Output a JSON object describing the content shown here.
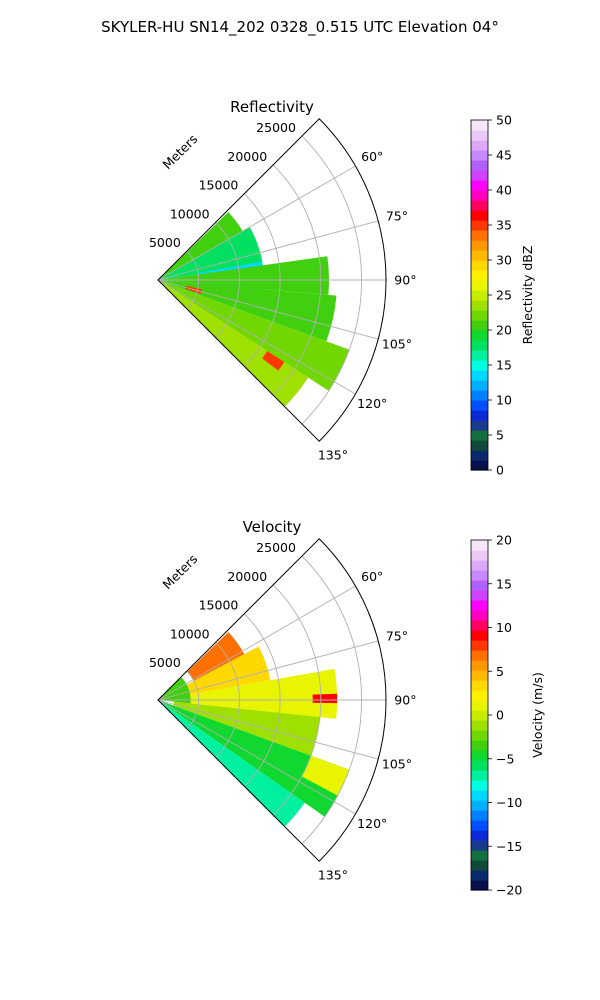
{
  "figure": {
    "suptitle": "SKYLER-HU  SN14_202  0328_0.515 UTC Elevation 04°"
  },
  "chart_data": [
    {
      "type": "heatmap",
      "projection": "polar-sector",
      "title": "Reflectivity",
      "range_label": "Meters",
      "azimuth_range_deg": [
        45,
        135
      ],
      "azimuth_ticks": [
        "60°",
        "75°",
        "90°",
        "105°",
        "120°",
        "135°"
      ],
      "azimuth_tick_values": [
        60,
        75,
        90,
        105,
        120,
        135
      ],
      "range_max": 28000,
      "range_ticks": [
        "5000",
        "10000",
        "15000",
        "20000",
        "25000"
      ],
      "range_tick_values": [
        5000,
        10000,
        15000,
        20000,
        25000
      ],
      "grid": true,
      "colorbar": {
        "label": "Reflectivity dBZ",
        "min": 0,
        "max": 50,
        "ticks": [
          "0",
          "5",
          "10",
          "15",
          "20",
          "25",
          "30",
          "35",
          "40",
          "45",
          "50"
        ],
        "tick_values": [
          0,
          5,
          10,
          15,
          20,
          25,
          30,
          35,
          40,
          45,
          50
        ],
        "colors": [
          "#06104a",
          "#0a2a6e",
          "#0f4a3a",
          "#14703e",
          "#1a3a8c",
          "#0a2ad6",
          "#0050ff",
          "#0080ff",
          "#00b0ff",
          "#00d8ff",
          "#00ffe0",
          "#00f0a0",
          "#00e060",
          "#10d830",
          "#40d010",
          "#70d800",
          "#a0e000",
          "#c8ec00",
          "#e8f400",
          "#fff000",
          "#ffd800",
          "#ffb800",
          "#ff9800",
          "#ff7000",
          "#ff3800",
          "#ff0000",
          "#ff0060",
          "#ff00c0",
          "#ff00ff",
          "#d040ff",
          "#b060ff",
          "#c888ff",
          "#dca8f8",
          "#ecc8f4",
          "#f6e4f8"
        ]
      },
      "radar_cells": [
        {
          "az_start": 46,
          "az_end": 60,
          "r_start": 0,
          "r_end": 12000,
          "value": 20
        },
        {
          "az_start": 60,
          "az_end": 82,
          "r_start": 0,
          "r_end": 13000,
          "value": 18
        },
        {
          "az_start": 80,
          "az_end": 96,
          "r_start": 5000,
          "r_end": 13000,
          "value": 13
        },
        {
          "az_start": 82,
          "az_end": 95,
          "r_start": 0,
          "r_end": 21000,
          "value": 20
        },
        {
          "az_start": 95,
          "az_end": 110,
          "r_start": 0,
          "r_end": 22000,
          "value": 21
        },
        {
          "az_start": 110,
          "az_end": 123,
          "r_start": 0,
          "r_end": 25000,
          "value": 22
        },
        {
          "az_start": 123,
          "az_end": 135,
          "r_start": 0,
          "r_end": 22000,
          "value": 23
        },
        {
          "az_start": 102,
          "az_end": 108,
          "r_start": 3500,
          "r_end": 5500,
          "value": 35
        },
        {
          "az_start": 123,
          "az_end": 127,
          "r_start": 16000,
          "r_end": 18500,
          "value": 35
        }
      ]
    },
    {
      "type": "heatmap",
      "projection": "polar-sector",
      "title": "Velocity",
      "range_label": "Meters",
      "azimuth_range_deg": [
        45,
        135
      ],
      "azimuth_ticks": [
        "60°",
        "75°",
        "90°",
        "105°",
        "120°",
        "135°"
      ],
      "azimuth_tick_values": [
        60,
        75,
        90,
        105,
        120,
        135
      ],
      "range_max": 28000,
      "range_ticks": [
        "5000",
        "10000",
        "15000",
        "20000",
        "25000"
      ],
      "range_tick_values": [
        5000,
        10000,
        15000,
        20000,
        25000
      ],
      "grid": true,
      "colorbar": {
        "label": "Velocity (m/s)",
        "min": -20,
        "max": 20,
        "ticks": [
          "−20",
          "−15",
          "−10",
          "−5",
          "0",
          "5",
          "10",
          "15",
          "20"
        ],
        "tick_values": [
          -20,
          -15,
          -10,
          -5,
          0,
          5,
          10,
          15,
          20
        ],
        "colors": [
          "#06104a",
          "#0a2a6e",
          "#0f4a3a",
          "#14703e",
          "#1a3a8c",
          "#0a2ad6",
          "#0050ff",
          "#0080ff",
          "#00b0ff",
          "#00d8ff",
          "#00ffe0",
          "#00f0a0",
          "#00e060",
          "#10d830",
          "#40d010",
          "#70d800",
          "#a0e000",
          "#c8ec00",
          "#e8f400",
          "#fff000",
          "#ffd800",
          "#ffb800",
          "#ff9800",
          "#ff7000",
          "#ff3800",
          "#ff0000",
          "#ff0060",
          "#ff00c0",
          "#ff00ff",
          "#d040ff",
          "#b060ff",
          "#c888ff",
          "#dca8f8",
          "#ecc8f4",
          "#f6e4f8"
        ]
      },
      "radar_cells": [
        {
          "az_start": 46,
          "az_end": 62,
          "r_start": 5000,
          "r_end": 12000,
          "value": 7
        },
        {
          "az_start": 62,
          "az_end": 80,
          "r_start": 3000,
          "r_end": 14000,
          "value": 3
        },
        {
          "az_start": 80,
          "az_end": 96,
          "r_start": 2000,
          "r_end": 22000,
          "value": 1
        },
        {
          "az_start": 88,
          "az_end": 91,
          "r_start": 19000,
          "r_end": 22000,
          "value": 9
        },
        {
          "az_start": 96,
          "az_end": 110,
          "r_start": 2000,
          "r_end": 20000,
          "value": -1
        },
        {
          "az_start": 46,
          "az_end": 96,
          "r_start": 0,
          "r_end": 4000,
          "value": -3
        },
        {
          "az_start": 110,
          "az_end": 125,
          "r_start": 0,
          "r_end": 25000,
          "value": -5
        },
        {
          "az_start": 125,
          "az_end": 135,
          "r_start": 0,
          "r_end": 22000,
          "value": -7
        },
        {
          "az_start": 110,
          "az_end": 118,
          "r_start": 20000,
          "r_end": 25000,
          "value": 1
        }
      ]
    }
  ]
}
